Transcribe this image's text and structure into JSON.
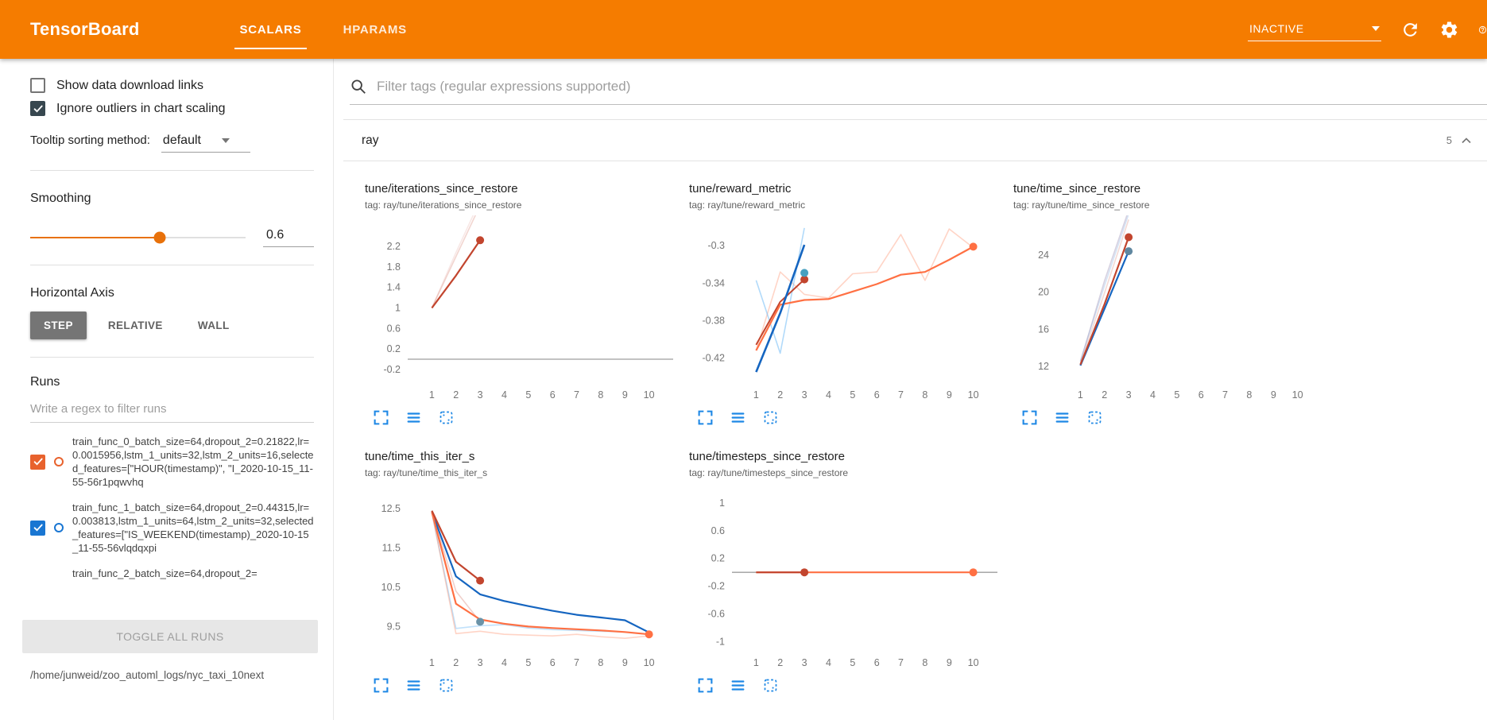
{
  "topbar": {
    "title": "TensorBoard",
    "tabs": [
      {
        "label": "SCALARS",
        "active": true
      },
      {
        "label": "HPARAMS",
        "active": false
      }
    ],
    "status": "INACTIVE"
  },
  "sidebar": {
    "toggles": [
      {
        "label": "Show data download links",
        "checked": false
      },
      {
        "label": "Ignore outliers in chart scaling",
        "checked": true
      }
    ],
    "tooltip_sort_label": "Tooltip sorting method:",
    "tooltip_sort_value": "default",
    "smoothing_label": "Smoothing",
    "smoothing_value": "0.6",
    "smoothing_percent": 60,
    "horizontal_axis_label": "Horizontal Axis",
    "axis_options": [
      {
        "label": "STEP",
        "active": true
      },
      {
        "label": "RELATIVE",
        "active": false
      },
      {
        "label": "WALL",
        "active": false
      }
    ],
    "runs_label": "Runs",
    "runs_filter_placeholder": "Write a regex to filter runs",
    "runs": [
      {
        "label": "train_func_0_batch_size=64,dropout_2=0.21822,lr=0.0015956,lstm_1_units=32,lstm_2_units=16,selected_features=[\"HOUR(timestamp)\", \"I_2020-10-15_11-55-56r1pqwvhq",
        "checked": true,
        "color": "#e8622d",
        "clipped": false
      },
      {
        "label": "train_func_1_batch_size=64,dropout_2=0.44315,lr=0.003813,lstm_1_units=64,lstm_2_units=32,selected_features=[\"IS_WEEKEND(timestamp)_2020-10-15_11-55-56vlqdqxpi",
        "checked": true,
        "color": "#1976d2",
        "clipped": false
      },
      {
        "label": "train_func_2_batch_size=64,dropout_2=",
        "checked": true,
        "color": "#e8622d",
        "clipped": true
      }
    ],
    "toggle_all_label": "TOGGLE ALL RUNS",
    "log_path": "/home/junweid/zoo_automl_logs/nyc_taxi_10next"
  },
  "main": {
    "filter_placeholder": "Filter tags (regular expressions supported)",
    "section_name": "ray",
    "section_count": "5"
  },
  "colors": {
    "header_orange": "#f57c00",
    "accent_orange": "#e8710a",
    "icon_blue": "#1e88e5",
    "run0": "#c2452e",
    "run1": "#1565c0",
    "run2": "#ff7043"
  },
  "chart_data": [
    {
      "type": "line",
      "title": "tune/iterations_since_restore",
      "tag": "tag: ray/tune/iterations_since_restore",
      "xlim": [
        0,
        11
      ],
      "ylim": [
        -0.45,
        2.65
      ],
      "xticks": [
        1,
        2,
        3,
        4,
        5,
        6,
        7,
        8,
        9,
        10
      ],
      "yticks": [
        -0.2,
        0.2,
        0.6,
        1,
        1.4,
        1.8,
        2.2
      ],
      "series": [
        {
          "name": "train_func_0 raw",
          "color": "#c2452e",
          "opacity": 0.22,
          "width": 1.6,
          "points": [
            [
              1,
              1
            ],
            [
              2,
              2
            ],
            [
              3,
              3
            ]
          ]
        },
        {
          "name": "train_func_1 raw",
          "color": "#c2452e",
          "opacity": 0.12,
          "width": 1.6,
          "points": [
            [
              1,
              1
            ],
            [
              2,
              2.08
            ],
            [
              3,
              3.1
            ]
          ]
        },
        {
          "name": "train_func_0 smoothed",
          "color": "#c2452e",
          "opacity": 1,
          "width": 2.2,
          "points": [
            [
              1,
              1
            ],
            [
              2,
              1.63
            ],
            [
              3,
              2.32
            ]
          ],
          "end_dot": true
        }
      ]
    },
    {
      "type": "line",
      "title": "tune/reward_metric",
      "tag": "tag: ray/tune/reward_metric",
      "xlim": [
        0,
        11
      ],
      "ylim": [
        -0.446,
        -0.276
      ],
      "xticks": [
        1,
        2,
        3,
        4,
        5,
        6,
        7,
        8,
        9,
        10
      ],
      "yticks": [
        -0.42,
        -0.38,
        -0.34,
        -0.3
      ],
      "series": [
        {
          "name": "train_func_2 raw",
          "color": "#ff7043",
          "opacity": 0.3,
          "width": 1.6,
          "points": [
            [
              1,
              -0.412
            ],
            [
              2,
              -0.328
            ],
            [
              3,
              -0.352
            ],
            [
              4,
              -0.356
            ],
            [
              5,
              -0.33
            ],
            [
              6,
              -0.328
            ],
            [
              7,
              -0.288
            ],
            [
              8,
              -0.337
            ],
            [
              9,
              -0.282
            ],
            [
              10,
              -0.302
            ]
          ]
        },
        {
          "name": "train_func_1 raw",
          "color": "#64b5f6",
          "opacity": 0.5,
          "width": 1.6,
          "points": [
            [
              1,
              -0.337
            ],
            [
              2,
              -0.415
            ],
            [
              3,
              -0.281
            ]
          ]
        },
        {
          "name": "train_func_0 smoothed",
          "color": "#c2452e",
          "opacity": 1,
          "width": 2,
          "points": [
            [
              1,
              -0.406
            ],
            [
              2,
              -0.36
            ],
            [
              3,
              -0.336
            ]
          ],
          "end_dot": true
        },
        {
          "name": "train_func_2 smoothed",
          "color": "#ff7043",
          "opacity": 1,
          "width": 2.2,
          "points": [
            [
              1,
              -0.412
            ],
            [
              2,
              -0.363
            ],
            [
              3,
              -0.358
            ],
            [
              4,
              -0.357
            ],
            [
              5,
              -0.349
            ],
            [
              6,
              -0.341
            ],
            [
              7,
              -0.331
            ],
            [
              8,
              -0.328
            ],
            [
              9,
              -0.315
            ],
            [
              10,
              -0.301
            ]
          ],
          "end_dot": true
        },
        {
          "name": "train_func_1 smoothed",
          "color": "#1565c0",
          "opacity": 1,
          "width": 2.6,
          "points": [
            [
              1,
              -0.435
            ],
            [
              2,
              -0.372
            ],
            [
              3,
              -0.299
            ]
          ],
          "dots": [
            [
              3,
              -0.329
            ]
          ],
          "dot_color": "#46a0c0"
        }
      ]
    },
    {
      "type": "line",
      "title": "tune/time_since_restore",
      "tag": "tag: ray/tune/time_since_restore",
      "xlim": [
        0,
        11
      ],
      "ylim": [
        10.3,
        27.4
      ],
      "xticks": [
        1,
        2,
        3,
        4,
        5,
        6,
        7,
        8,
        9,
        10
      ],
      "yticks": [
        12,
        16,
        20,
        24
      ],
      "series": [
        {
          "name": "train_func_0 raw",
          "color": "#c2452e",
          "opacity": 0.2,
          "width": 1.6,
          "points": [
            [
              1,
              12.3
            ],
            [
              2,
              19.9
            ],
            [
              3,
              27.8
            ]
          ]
        },
        {
          "name": "train_func_1 raw",
          "color": "#1565c0",
          "opacity": 0.18,
          "width": 1.6,
          "points": [
            [
              1,
              12.6
            ],
            [
              2,
              20.7
            ],
            [
              3,
              28.4
            ]
          ]
        },
        {
          "name": "train_func_2 raw",
          "color": "#9b8fb3",
          "opacity": 0.4,
          "width": 1.6,
          "points": [
            [
              1,
              12.5
            ],
            [
              2,
              21.2
            ],
            [
              3,
              28.8
            ]
          ]
        },
        {
          "name": "train_func_1 smoothed",
          "color": "#1565c0",
          "opacity": 1,
          "width": 2.2,
          "points": [
            [
              1,
              12.1
            ],
            [
              2,
              18.2
            ],
            [
              3,
              24.4
            ]
          ],
          "end_dot": true,
          "dot_color": "#5f87a0"
        },
        {
          "name": "train_func_0 smoothed",
          "color": "#c2452e",
          "opacity": 1,
          "width": 2.2,
          "points": [
            [
              1,
              12.2
            ],
            [
              2,
              18.7
            ],
            [
              3,
              25.9
            ]
          ],
          "end_dot": true
        }
      ]
    },
    {
      "type": "line",
      "title": "tune/time_this_iter_s",
      "tag": "tag: ray/tune/time_this_iter_s",
      "xlim": [
        0,
        11
      ],
      "ylim": [
        8.9,
        12.95
      ],
      "xticks": [
        1,
        2,
        3,
        4,
        5,
        6,
        7,
        8,
        9,
        10
      ],
      "yticks": [
        9.5,
        10.5,
        11.5,
        12.5
      ],
      "series": [
        {
          "name": "train_func_0 raw",
          "color": "#c2452e",
          "opacity": 0.25,
          "width": 1.6,
          "points": [
            [
              1,
              12.45
            ],
            [
              2,
              10.4
            ],
            [
              3,
              9.62
            ]
          ]
        },
        {
          "name": "train_func_1 raw",
          "color": "#64b5f6",
          "opacity": 0.4,
          "width": 1.6,
          "points": [
            [
              1,
              12.4
            ],
            [
              2,
              9.45
            ],
            [
              3,
              9.52
            ],
            [
              4,
              9.55
            ],
            [
              5,
              9.46
            ],
            [
              6,
              9.42
            ],
            [
              7,
              9.4
            ],
            [
              8,
              9.38
            ],
            [
              9,
              9.36
            ],
            [
              10,
              9.3
            ]
          ]
        },
        {
          "name": "train_func_2 raw",
          "color": "#ff7043",
          "opacity": 0.3,
          "width": 1.6,
          "points": [
            [
              1,
              12.4
            ],
            [
              2,
              9.32
            ],
            [
              3,
              9.38
            ],
            [
              4,
              9.3
            ],
            [
              5,
              9.28
            ],
            [
              6,
              9.26
            ],
            [
              7,
              9.3
            ],
            [
              8,
              9.24
            ],
            [
              9,
              9.2
            ],
            [
              10,
              9.26
            ]
          ]
        },
        {
          "name": "train_func_1 smoothed",
          "color": "#1565c0",
          "opacity": 1,
          "width": 2.2,
          "points": [
            [
              1,
              12.42
            ],
            [
              2,
              10.78
            ],
            [
              3,
              10.32
            ],
            [
              4,
              10.15
            ],
            [
              5,
              10.02
            ],
            [
              6,
              9.9
            ],
            [
              7,
              9.8
            ],
            [
              8,
              9.73
            ],
            [
              9,
              9.66
            ],
            [
              10,
              9.35
            ]
          ]
        },
        {
          "name": "train_func_2 smoothed",
          "color": "#ff7043",
          "opacity": 1,
          "width": 2.2,
          "points": [
            [
              1,
              12.42
            ],
            [
              2,
              10.08
            ],
            [
              3,
              9.68
            ],
            [
              4,
              9.57
            ],
            [
              5,
              9.5
            ],
            [
              6,
              9.46
            ],
            [
              7,
              9.43
            ],
            [
              8,
              9.4
            ],
            [
              9,
              9.36
            ],
            [
              10,
              9.3
            ]
          ],
          "end_dot": true
        },
        {
          "name": "train_func_0 smoothed",
          "color": "#c2452e",
          "opacity": 1,
          "width": 2.2,
          "points": [
            [
              1,
              12.45
            ],
            [
              2,
              11.15
            ],
            [
              3,
              10.67
            ]
          ],
          "end_dot": true
        },
        {
          "name": "train_func_1 marker",
          "color": "#6b93a8",
          "opacity": 1,
          "width": 0,
          "points": [],
          "dots": [
            [
              3,
              9.62
            ]
          ]
        }
      ]
    },
    {
      "type": "line",
      "title": "tune/timesteps_since_restore",
      "tag": "tag: ray/tune/timesteps_since_restore",
      "xlim": [
        0,
        11
      ],
      "ylim": [
        -1.12,
        1.17
      ],
      "xticks": [
        1,
        2,
        3,
        4,
        5,
        6,
        7,
        8,
        9,
        10
      ],
      "yticks": [
        -1,
        -0.6,
        -0.2,
        0.2,
        0.6,
        1
      ],
      "series": [
        {
          "name": "train_func_2 smoothed",
          "color": "#ff7043",
          "opacity": 1,
          "width": 2.2,
          "points": [
            [
              1,
              0
            ],
            [
              2,
              0
            ],
            [
              3,
              0
            ],
            [
              4,
              0
            ],
            [
              5,
              0
            ],
            [
              6,
              0
            ],
            [
              7,
              0
            ],
            [
              8,
              0
            ],
            [
              9,
              0
            ],
            [
              10,
              0
            ]
          ],
          "end_dot": true
        },
        {
          "name": "train_func_0 smoothed",
          "color": "#c2452e",
          "opacity": 1,
          "width": 2.2,
          "points": [
            [
              1,
              0
            ],
            [
              2,
              0
            ],
            [
              3,
              0
            ]
          ],
          "end_dot": true
        }
      ]
    }
  ]
}
